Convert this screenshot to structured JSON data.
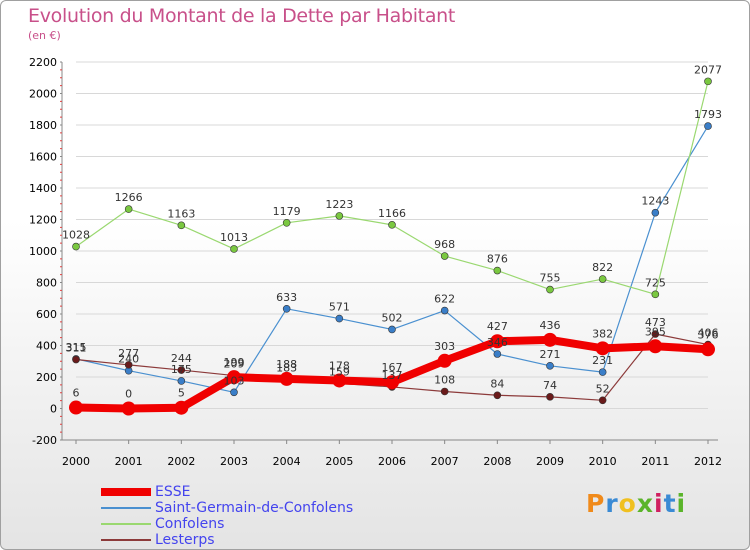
{
  "header": {
    "title": "Evolution du Montant de la Dette par Habitant",
    "subtitle": "(en €)"
  },
  "logo": {
    "text": "Proxiti",
    "colors": [
      "#f08a1a",
      "#3a8ad4",
      "#f0c020",
      "#5ab42a",
      "#d02060",
      "#3a8ad4",
      "#5ab42a"
    ]
  },
  "chart_data": {
    "type": "line",
    "categories": [
      "2000",
      "2001",
      "2002",
      "2003",
      "2004",
      "2005",
      "2006",
      "2007",
      "2008",
      "2009",
      "2010",
      "2011",
      "2012"
    ],
    "ylim": [
      -200,
      2200
    ],
    "yticks": [
      -200,
      0,
      200,
      400,
      600,
      800,
      1000,
      1200,
      1400,
      1600,
      1800,
      2000,
      2200
    ],
    "grid": true,
    "legend_position": "bottom",
    "series": [
      {
        "name": "Saint-Germain-de-Confolens",
        "color": "#4a90d0",
        "marker": "#3a7ec8",
        "width": 1.2,
        "values": [
          315,
          240,
          175,
          103,
          633,
          571,
          502,
          622,
          346,
          271,
          231,
          1243,
          1793
        ],
        "labels": [
          "315",
          "240",
          "175",
          "103",
          "633",
          "571",
          "502",
          "622",
          "346",
          "271",
          "231",
          "1243",
          "1793"
        ]
      },
      {
        "name": "Confolens",
        "color": "#9ad870",
        "marker": "#7ac840",
        "width": 1.2,
        "values": [
          1028,
          1266,
          1163,
          1013,
          1179,
          1223,
          1166,
          968,
          876,
          755,
          822,
          725,
          2077
        ],
        "labels": [
          "1028",
          "1266",
          "1163",
          "1013",
          "1179",
          "1223",
          "1166",
          "968",
          "876",
          "755",
          "822",
          "725",
          "2077"
        ]
      },
      {
        "name": "Lesterps",
        "color": "#8c3a3a",
        "marker": "#6a1a1a",
        "width": 1.2,
        "values": [
          311,
          277,
          244,
          209,
          183,
          159,
          137,
          108,
          84,
          74,
          52,
          473,
          406
        ],
        "labels": [
          "311",
          "277",
          "244",
          "209",
          "183",
          "159",
          "137",
          "108",
          "84",
          "74",
          "52",
          "473",
          "406"
        ]
      },
      {
        "name": "ESSE",
        "color": "#f00000",
        "marker": "#f00000",
        "width": 8,
        "values": [
          6,
          0,
          5,
          199,
          188,
          178,
          167,
          303,
          427,
          436,
          382,
          395,
          376
        ],
        "labels": [
          "6",
          "0",
          "5",
          "199",
          "188",
          "178",
          "167",
          "303",
          "427",
          "436",
          "382",
          "395",
          "376"
        ]
      }
    ]
  }
}
